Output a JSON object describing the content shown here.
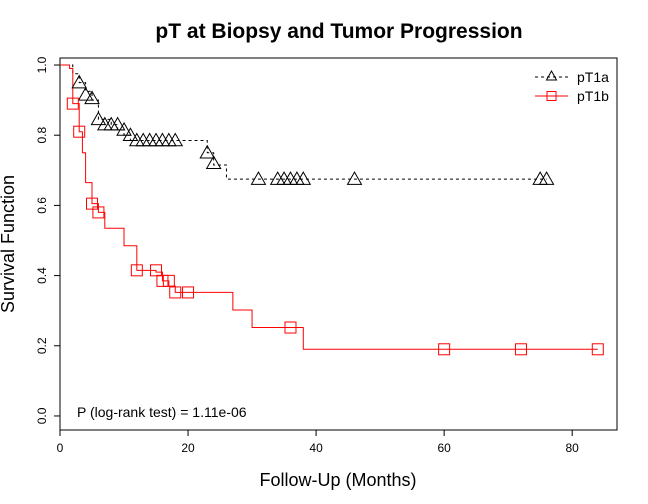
{
  "chart_data": {
    "type": "line",
    "subtype": "kaplan-meier step",
    "title": "pT at Biopsy and Tumor Progression",
    "xlabel": "Follow-Up (Months)",
    "ylabel": "Survival Function",
    "xlim": [
      0,
      87
    ],
    "ylim": [
      -0.04,
      1.02
    ],
    "x_ticks": [
      0,
      20,
      40,
      60,
      80
    ],
    "y_ticks": [
      0.0,
      0.2,
      0.4,
      0.6,
      0.8,
      1.0
    ],
    "x_tick_labels": [
      "0",
      "20",
      "40",
      "60",
      "80"
    ],
    "y_tick_labels": [
      "0.0",
      "0.2",
      "0.4",
      "0.6",
      "0.8",
      "1.0"
    ],
    "legend_position": "top-right",
    "annotation": "P (log-rank test) =  1.11e-06",
    "series": [
      {
        "name": "pT1a",
        "color": "#000000",
        "line_style": "dashed",
        "marker": "triangle",
        "steps": [
          [
            0,
            1.0
          ],
          [
            2,
            0.975
          ],
          [
            3,
            0.95
          ],
          [
            4,
            0.925
          ],
          [
            5,
            0.9
          ],
          [
            6,
            0.845
          ],
          [
            8,
            0.83
          ],
          [
            9,
            0.815
          ],
          [
            10,
            0.8
          ],
          [
            11,
            0.785
          ],
          [
            23,
            0.75
          ],
          [
            24,
            0.715
          ],
          [
            26,
            0.675
          ],
          [
            76,
            0.675
          ]
        ],
        "censored": [
          [
            3,
            0.95
          ],
          [
            4,
            0.915
          ],
          [
            5,
            0.905
          ],
          [
            6,
            0.845
          ],
          [
            7,
            0.83
          ],
          [
            8,
            0.83
          ],
          [
            9,
            0.83
          ],
          [
            10,
            0.815
          ],
          [
            11,
            0.8
          ],
          [
            12,
            0.785
          ],
          [
            13,
            0.785
          ],
          [
            14,
            0.785
          ],
          [
            15,
            0.785
          ],
          [
            16,
            0.785
          ],
          [
            17,
            0.785
          ],
          [
            18,
            0.785
          ],
          [
            23,
            0.75
          ],
          [
            24,
            0.72
          ],
          [
            31,
            0.675
          ],
          [
            34,
            0.675
          ],
          [
            35,
            0.675
          ],
          [
            36,
            0.675
          ],
          [
            37,
            0.675
          ],
          [
            38,
            0.675
          ],
          [
            46,
            0.675
          ],
          [
            75,
            0.675
          ],
          [
            76,
            0.675
          ]
        ]
      },
      {
        "name": "pT1b",
        "color": "#ff0000",
        "line_style": "solid",
        "marker": "square",
        "steps": [
          [
            0,
            1.0
          ],
          [
            1.5,
            0.99
          ],
          [
            2,
            0.89
          ],
          [
            3,
            0.81
          ],
          [
            3.5,
            0.75
          ],
          [
            4,
            0.665
          ],
          [
            5,
            0.605
          ],
          [
            6,
            0.58
          ],
          [
            7,
            0.535
          ],
          [
            10,
            0.485
          ],
          [
            12,
            0.415
          ],
          [
            15,
            0.41
          ],
          [
            16,
            0.385
          ],
          [
            17,
            0.37
          ],
          [
            18,
            0.352
          ],
          [
            27,
            0.302
          ],
          [
            30,
            0.252
          ],
          [
            38,
            0.19
          ],
          [
            84,
            0.19
          ]
        ],
        "censored": [
          [
            2,
            0.89
          ],
          [
            3,
            0.81
          ],
          [
            5,
            0.605
          ],
          [
            6,
            0.58
          ],
          [
            12,
            0.415
          ],
          [
            15,
            0.415
          ],
          [
            16,
            0.385
          ],
          [
            17,
            0.385
          ],
          [
            18,
            0.352
          ],
          [
            20,
            0.352
          ],
          [
            36,
            0.252
          ],
          [
            60,
            0.19
          ],
          [
            72,
            0.19
          ],
          [
            84,
            0.19
          ]
        ]
      }
    ]
  }
}
